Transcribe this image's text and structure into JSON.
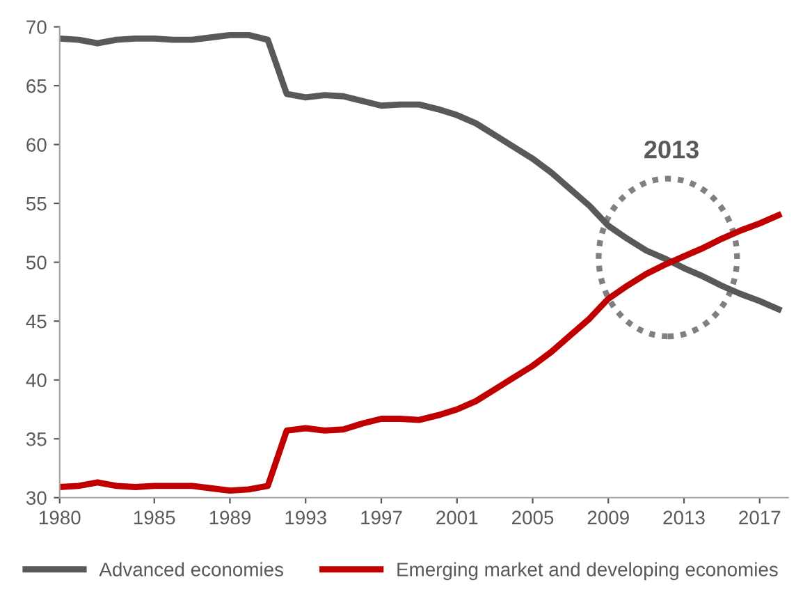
{
  "chart_data": {
    "type": "line",
    "x": [
      1980,
      1981,
      1982,
      1983,
      1984,
      1985,
      1986,
      1987,
      1988,
      1989,
      1990,
      1991,
      1992,
      1993,
      1994,
      1995,
      1996,
      1997,
      1998,
      1999,
      2000,
      2001,
      2002,
      2003,
      2004,
      2005,
      2006,
      2007,
      2008,
      2009,
      2010,
      2011,
      2012,
      2013,
      2014,
      2015,
      2016,
      2017,
      2018
    ],
    "series": [
      {
        "name": "Advanced economies",
        "color": "#595959",
        "values": [
          69.0,
          68.9,
          68.6,
          68.9,
          69.0,
          69.0,
          68.9,
          68.9,
          69.1,
          69.3,
          69.3,
          68.9,
          64.3,
          64.0,
          64.2,
          64.1,
          63.7,
          63.3,
          63.4,
          63.4,
          63.0,
          62.5,
          61.8,
          60.8,
          59.8,
          58.8,
          57.6,
          56.2,
          54.8,
          53.1,
          52.0,
          51.0,
          50.3,
          49.5,
          48.8,
          48.0,
          47.3,
          46.7,
          46.0
        ]
      },
      {
        "name": "Emerging market and developing economies",
        "color": "#c00000",
        "values": [
          30.9,
          31.0,
          31.3,
          31.0,
          30.9,
          31.0,
          31.0,
          31.0,
          30.8,
          30.6,
          30.7,
          31.0,
          35.7,
          35.9,
          35.7,
          35.8,
          36.3,
          36.7,
          36.7,
          36.6,
          37.0,
          37.5,
          38.2,
          39.2,
          40.2,
          41.2,
          42.4,
          43.8,
          45.2,
          46.9,
          48.0,
          49.0,
          49.8,
          50.5,
          51.2,
          52.0,
          52.7,
          53.3,
          54.0
        ]
      }
    ],
    "xlim": [
      1980,
      2018.5
    ],
    "xticks": [
      1980,
      1985,
      1989,
      1993,
      1997,
      2001,
      2005,
      2009,
      2013,
      2017
    ],
    "ylim": [
      30,
      70
    ],
    "yticks": [
      30,
      35,
      40,
      45,
      50,
      55,
      60,
      65,
      70
    ],
    "annotations": [
      "2013"
    ],
    "legend": "bottom",
    "grid": false,
    "marker": "none",
    "line_style": "solid"
  }
}
